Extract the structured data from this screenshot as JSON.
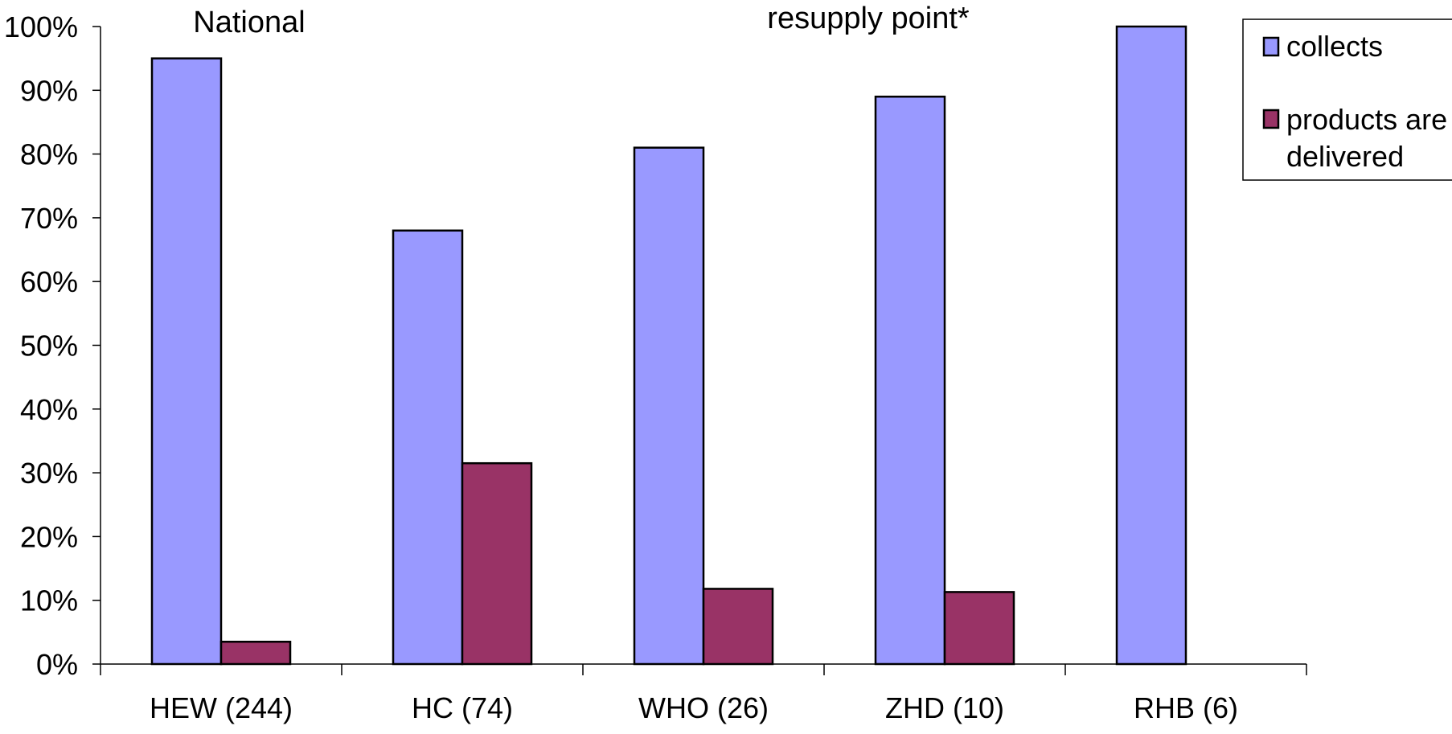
{
  "chart_data": {
    "type": "bar",
    "title_fragments": [
      "National",
      "resupply point*"
    ],
    "categories": [
      "HEW (244)",
      "HC (74)",
      "WHO (26)",
      "ZHD (10)",
      "RHB (6)"
    ],
    "series": [
      {
        "name": "collects",
        "values": [
          95,
          68,
          81,
          89,
          100
        ],
        "color": "#9999ff"
      },
      {
        "name": "products are delivered",
        "name_lines": [
          "products are",
          "delivered"
        ],
        "values": [
          3.5,
          31.5,
          11.8,
          11.3,
          0
        ],
        "color": "#993366"
      }
    ],
    "ylim": [
      0,
      100
    ],
    "y_ticks": [
      "0%",
      "10%",
      "20%",
      "30%",
      "40%",
      "50%",
      "60%",
      "70%",
      "80%",
      "90%",
      "100%"
    ],
    "grid": false,
    "legend_position": "top-right"
  }
}
